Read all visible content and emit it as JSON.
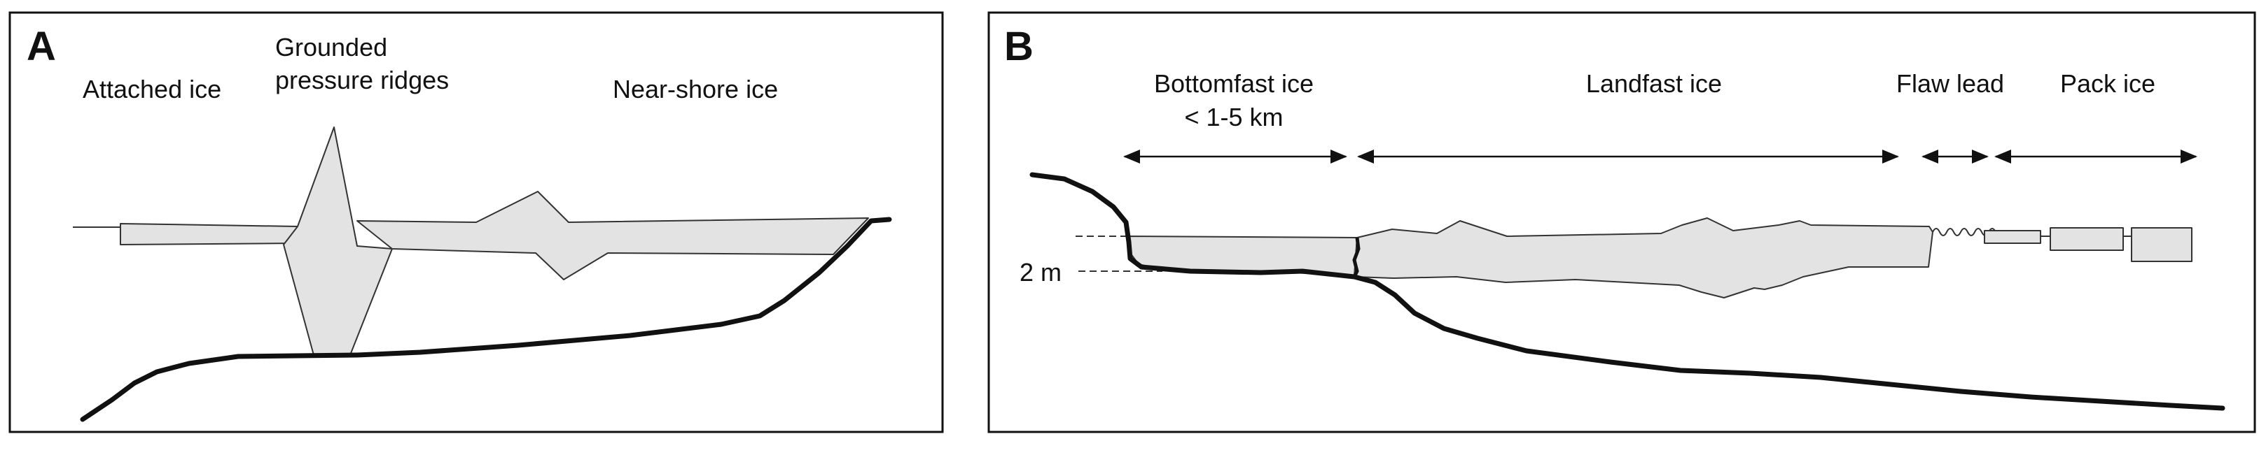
{
  "panel_a": {
    "letter": "A",
    "labels": {
      "attached_ice": "Attached ice",
      "grounded_line1": "Grounded",
      "grounded_line2": "pressure ridges",
      "near_shore_ice": "Near-shore ice"
    }
  },
  "panel_b": {
    "letter": "B",
    "labels": {
      "bottomfast_line1": "Bottomfast ice",
      "bottomfast_line2": "< 1-5 km",
      "landfast_ice": "Landfast ice",
      "flaw_lead": "Flaw lead",
      "pack_ice": "Pack ice",
      "depth_marker": "2 m"
    }
  },
  "colors": {
    "ice_fill": "#e3e3e3",
    "outline": "#333333",
    "ground_line": "#111111"
  }
}
